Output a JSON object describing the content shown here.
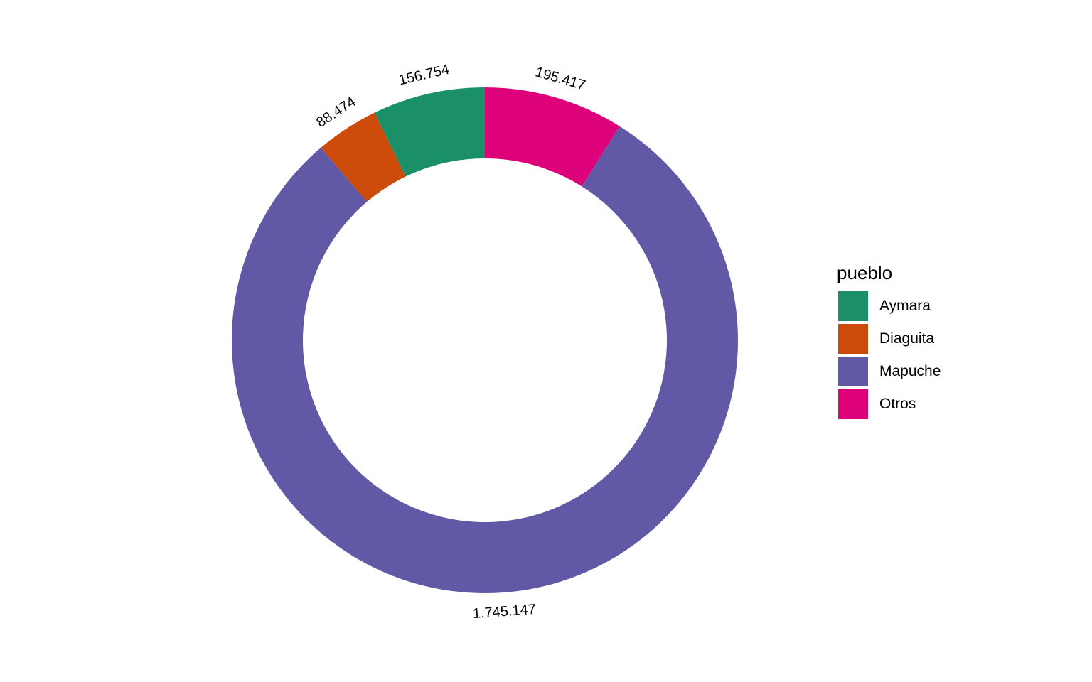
{
  "chart_data": {
    "type": "pie",
    "variant": "donut",
    "title": "",
    "categories": [
      "Aymara",
      "Diaguita",
      "Mapuche",
      "Otros"
    ],
    "values": [
      156754,
      88474,
      1745147,
      195417
    ],
    "labels": [
      "156.754",
      "88.474",
      "1.745.147",
      "195.417"
    ],
    "colors": [
      "#1b9068",
      "#cc4b0b",
      "#6159a5",
      "#dd0279"
    ],
    "legend": {
      "title": "pueblo",
      "position": "right"
    }
  }
}
